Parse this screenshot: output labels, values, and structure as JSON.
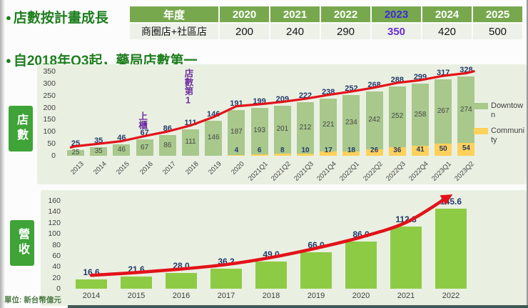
{
  "slide": {
    "bullet1": "店數按計畫成長",
    "bullet2": "自2018年Q3起，藥局店數第一",
    "unit_note": "單位: 新台幣億元"
  },
  "plan_table": {
    "columns": [
      "年度",
      "2020",
      "2021",
      "2022",
      "2023",
      "2024",
      "2025"
    ],
    "row_label": "商圈店+社區店",
    "values": [
      "200",
      "240",
      "290",
      "350",
      "420",
      "500"
    ],
    "highlight_year": "2023",
    "highlight_value": "350"
  },
  "store_chart": {
    "side_label": "店數"
  },
  "revenue_chart": {
    "side_label": "營收"
  },
  "colors": {
    "title_green": "#1e7e1e",
    "table_header_bg": "#77a84e",
    "table_row_bg": "#edf1e8",
    "highlight_purple_header": "#3f28d8",
    "highlight_purple_value": "#6a2fd0",
    "panel_bg": "#e9f0e2",
    "downtown_bar": "#a8c88c",
    "community_bar": "#ffd15a",
    "revenue_bar": "#8ecb44",
    "trend_red": "#e31219",
    "value_navy": "#233a6b",
    "annotation_purple": "#7030a0",
    "side_box_green": "#3fa338"
  },
  "chart_data": [
    {
      "id": "store_count",
      "type": "bar",
      "stacked": true,
      "title": "店數",
      "categories": [
        "2013",
        "2014",
        "2015",
        "2016",
        "2017",
        "2018",
        "2019",
        "2020",
        "2021Q1",
        "2021Q2",
        "2021Q3",
        "2021Q4",
        "2022Q1",
        "2022Q2",
        "2022Q3",
        "2022Q4",
        "2023Q1",
        "2023Q2"
      ],
      "series": [
        {
          "name": "Downtown",
          "color": "#a8c88c",
          "values": [
            25,
            35,
            46,
            67,
            86,
            111,
            146,
            187,
            193,
            201,
            212,
            221,
            234,
            242,
            252,
            258,
            267,
            274
          ]
        },
        {
          "name": "Community",
          "color": "#ffd15a",
          "values": [
            0,
            0,
            0,
            0,
            0,
            0,
            0,
            4,
            6,
            8,
            10,
            17,
            18,
            26,
            36,
            41,
            50,
            54
          ]
        }
      ],
      "totals": [
        25,
        35,
        46,
        67,
        86,
        111,
        146,
        191,
        199,
        209,
        222,
        238,
        252,
        268,
        288,
        299,
        317,
        328
      ],
      "ylim": [
        0,
        350
      ],
      "yticks": [
        0,
        50,
        100,
        150,
        200,
        250,
        300,
        350
      ],
      "legend": [
        "Downtown",
        "Community"
      ],
      "legend_position": "right",
      "annotations": [
        {
          "text": "上櫃",
          "category": "2016"
        },
        {
          "text": "店數第1",
          "category": "2018"
        }
      ],
      "trendline": true,
      "trendline_color": "#e31219"
    },
    {
      "id": "revenue",
      "type": "bar",
      "title": "營收",
      "categories": [
        "2014",
        "2015",
        "2016",
        "2017",
        "2018",
        "2019",
        "2020",
        "2021",
        "2022"
      ],
      "values": [
        16.6,
        21.6,
        28.0,
        36.2,
        49.0,
        66.0,
        86.0,
        112.8,
        145.6
      ],
      "ylim": [
        0,
        160
      ],
      "yticks": [
        0,
        20,
        40,
        60,
        80,
        100,
        120,
        140,
        160
      ],
      "bar_color": "#8ecb44",
      "trend_arrow": true,
      "trend_color": "#e31219",
      "unit": "新台幣億元"
    }
  ]
}
